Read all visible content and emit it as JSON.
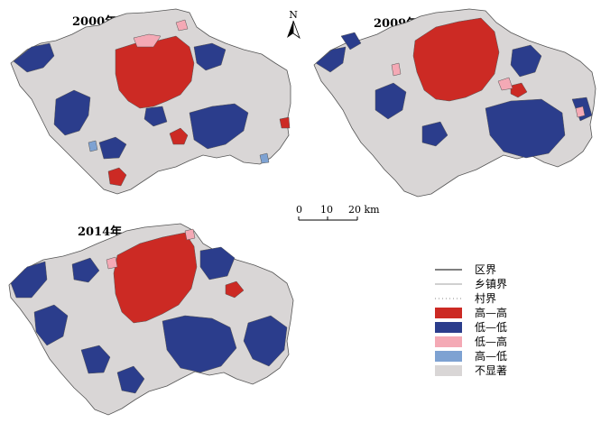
{
  "maps": [
    {
      "year_label": "2000年"
    },
    {
      "year_label": "2009年"
    },
    {
      "year_label": "2014年"
    }
  ],
  "north_arrow": {
    "label": "N"
  },
  "scale_bar": {
    "ticks": [
      "0",
      "10",
      "20 km"
    ]
  },
  "legend": {
    "items": [
      {
        "label": "区界",
        "type": "line-solid"
      },
      {
        "label": "乡镇界",
        "type": "line-thin"
      },
      {
        "label": "村界",
        "type": "line-dotted"
      },
      {
        "label": "高—高",
        "type": "fill",
        "color": "#cc2a24"
      },
      {
        "label": "低—低",
        "type": "fill",
        "color": "#2b3d8c"
      },
      {
        "label": "低—高",
        "type": "fill",
        "color": "#f4a9b5"
      },
      {
        "label": "高—低",
        "type": "fill",
        "color": "#7ea2d2"
      },
      {
        "label": "不显著",
        "type": "fill",
        "color": "#d9d6d6"
      }
    ]
  },
  "colors": {
    "high_high": "#cc2a24",
    "low_low": "#2b3d8c",
    "low_high": "#f4a9b5",
    "high_low": "#7ea2d2",
    "not_significant": "#d9d6d6",
    "boundary": "#555555"
  }
}
